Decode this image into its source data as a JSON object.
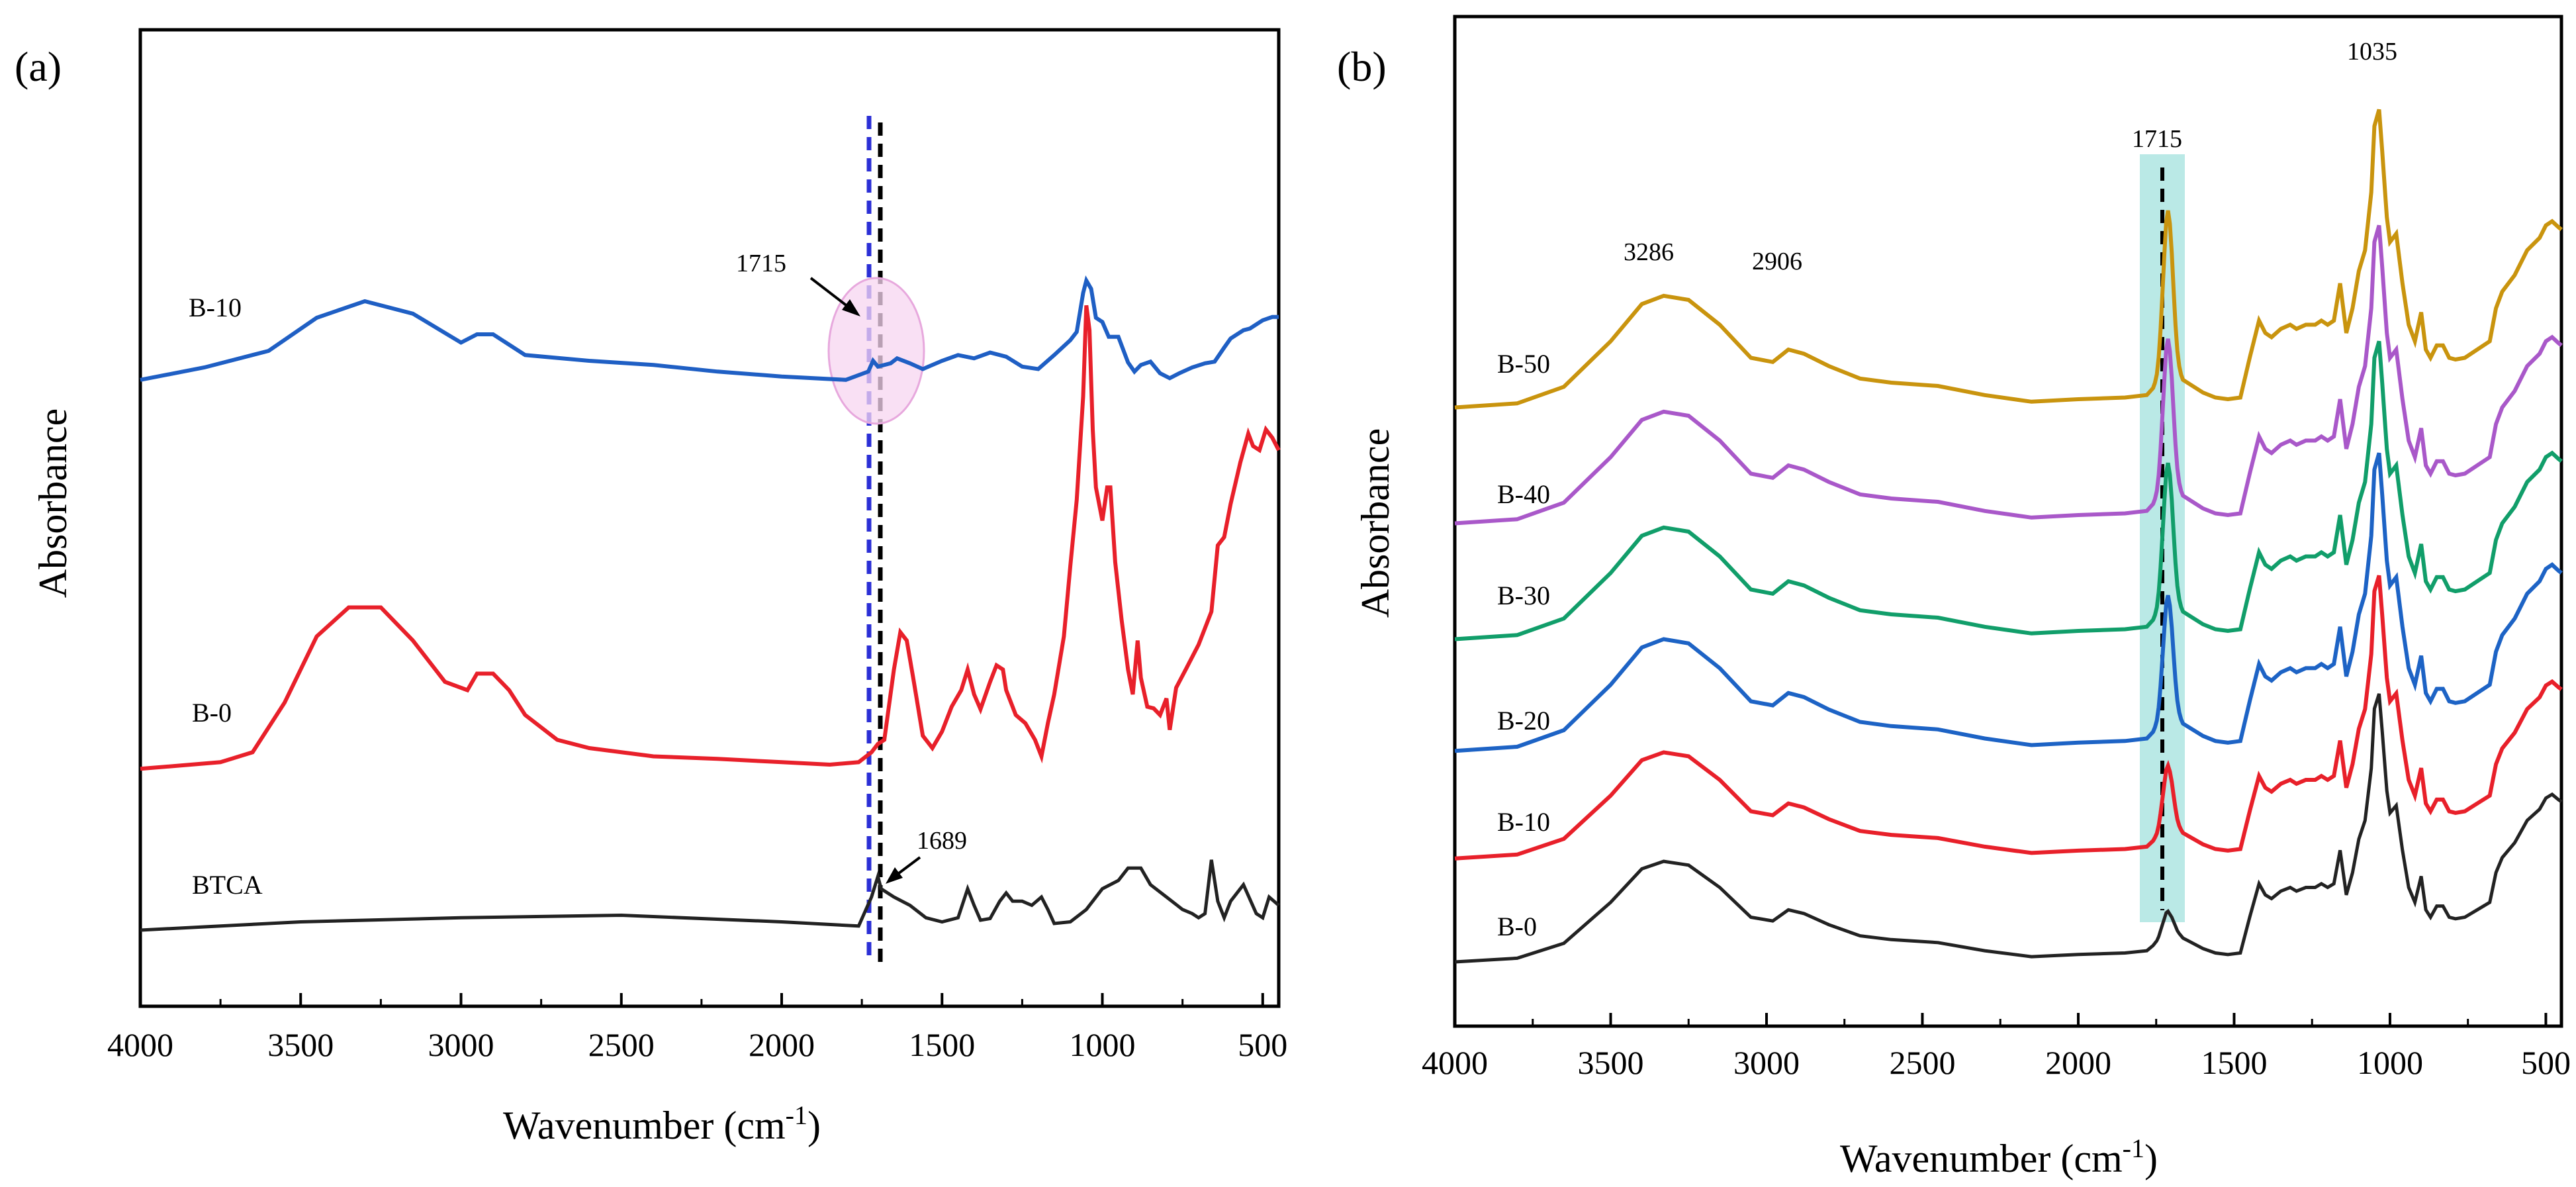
{
  "chart_data": [
    {
      "type": "line",
      "panel_label": "(a)",
      "xlabel": "Wavenumber (cm",
      "xlabel_sup": "-1",
      "xlabel_close": ")",
      "ylabel": "Absorbance",
      "xlim": [
        4000,
        450
      ],
      "ylim": [
        0,
        100
      ],
      "x_reversed": true,
      "xticks": [
        4000,
        3500,
        3000,
        2500,
        2000,
        1500,
        1000,
        500
      ],
      "xtick_labels": [
        "4000",
        "3500",
        "3000",
        "2500",
        "2000",
        "1500",
        "1000",
        "500"
      ],
      "series": [
        {
          "name": "B-10",
          "color": "#1f5fc4",
          "offset": 66.5,
          "points": [
            [
              4000,
              0
            ],
            [
              3800,
              1.5
            ],
            [
              3600,
              3.5
            ],
            [
              3450,
              7.5
            ],
            [
              3300,
              9.5
            ],
            [
              3150,
              8
            ],
            [
              3000,
              4.5
            ],
            [
              2950,
              5.5
            ],
            [
              2900,
              5.5
            ],
            [
              2800,
              3
            ],
            [
              2600,
              2.3
            ],
            [
              2400,
              1.8
            ],
            [
              2200,
              1
            ],
            [
              2000,
              0.4
            ],
            [
              1800,
              0
            ],
            [
              1730,
              1
            ],
            [
              1715,
              2.3
            ],
            [
              1700,
              1.6
            ],
            [
              1660,
              2
            ],
            [
              1640,
              2.6
            ],
            [
              1600,
              2
            ],
            [
              1560,
              1.3
            ],
            [
              1500,
              2.3
            ],
            [
              1450,
              3
            ],
            [
              1400,
              2.6
            ],
            [
              1350,
              3.3
            ],
            [
              1300,
              2.8
            ],
            [
              1250,
              1.6
            ],
            [
              1200,
              1.3
            ],
            [
              1150,
              3
            ],
            [
              1100,
              4.8
            ],
            [
              1080,
              5.8
            ],
            [
              1060,
              10.5
            ],
            [
              1050,
              12
            ],
            [
              1035,
              11
            ],
            [
              1020,
              7.5
            ],
            [
              1000,
              7
            ],
            [
              980,
              5.2
            ],
            [
              950,
              5.2
            ],
            [
              920,
              2.1
            ],
            [
              900,
              1
            ],
            [
              880,
              1.8
            ],
            [
              850,
              2.2
            ],
            [
              820,
              0.8
            ],
            [
              790,
              0.2
            ],
            [
              760,
              0.8
            ],
            [
              720,
              1.5
            ],
            [
              680,
              2
            ],
            [
              650,
              2.2
            ],
            [
              620,
              3.9
            ],
            [
              600,
              5
            ],
            [
              560,
              6
            ],
            [
              540,
              6.2
            ],
            [
              500,
              7.2
            ],
            [
              470,
              7.6
            ],
            [
              450,
              7.6
            ]
          ]
        },
        {
          "name": "B-0",
          "color": "#e8202a",
          "offset": 19.5,
          "points": [
            [
              4000,
              0
            ],
            [
              3750,
              0.8
            ],
            [
              3650,
              2
            ],
            [
              3550,
              8
            ],
            [
              3450,
              16
            ],
            [
              3350,
              19.5
            ],
            [
              3250,
              19.5
            ],
            [
              3150,
              15.5
            ],
            [
              3050,
              10.5
            ],
            [
              2980,
              9.5
            ],
            [
              2950,
              11.5
            ],
            [
              2900,
              11.5
            ],
            [
              2850,
              9.5
            ],
            [
              2800,
              6.5
            ],
            [
              2700,
              3.5
            ],
            [
              2600,
              2.5
            ],
            [
              2400,
              1.5
            ],
            [
              2200,
              1.2
            ],
            [
              2000,
              0.8
            ],
            [
              1850,
              0.5
            ],
            [
              1760,
              0.8
            ],
            [
              1720,
              2
            ],
            [
              1700,
              3
            ],
            [
              1680,
              3.5
            ],
            [
              1650,
              12
            ],
            [
              1630,
              16.5
            ],
            [
              1610,
              15.5
            ],
            [
              1590,
              11
            ],
            [
              1560,
              4
            ],
            [
              1530,
              2.5
            ],
            [
              1500,
              4.5
            ],
            [
              1470,
              7.5
            ],
            [
              1440,
              9.5
            ],
            [
              1420,
              12
            ],
            [
              1400,
              9
            ],
            [
              1380,
              7.2
            ],
            [
              1350,
              10.5
            ],
            [
              1330,
              12.5
            ],
            [
              1310,
              12
            ],
            [
              1300,
              9.5
            ],
            [
              1270,
              6.5
            ],
            [
              1240,
              5.5
            ],
            [
              1210,
              3.5
            ],
            [
              1190,
              1.5
            ],
            [
              1170,
              5.5
            ],
            [
              1150,
              9
            ],
            [
              1120,
              16
            ],
            [
              1100,
              24.5
            ],
            [
              1080,
              32.5
            ],
            [
              1060,
              45
            ],
            [
              1050,
              56
            ],
            [
              1040,
              53
            ],
            [
              1030,
              41
            ],
            [
              1020,
              34
            ],
            [
              1000,
              30
            ],
            [
              985,
              34
            ],
            [
              975,
              34
            ],
            [
              960,
              25
            ],
            [
              940,
              18
            ],
            [
              920,
              12
            ],
            [
              905,
              9
            ],
            [
              890,
              15.5
            ],
            [
              880,
              11
            ],
            [
              860,
              7.5
            ],
            [
              840,
              7.3
            ],
            [
              820,
              6.5
            ],
            [
              800,
              8.5
            ],
            [
              790,
              4.7
            ],
            [
              770,
              9.8
            ],
            [
              740,
              12
            ],
            [
              700,
              15
            ],
            [
              660,
              19
            ],
            [
              640,
              27
            ],
            [
              620,
              28
            ],
            [
              600,
              32
            ],
            [
              570,
              37
            ],
            [
              545,
              40.5
            ],
            [
              530,
              39
            ],
            [
              510,
              38.5
            ],
            [
              490,
              41
            ],
            [
              470,
              40
            ],
            [
              450,
              38.5
            ]
          ]
        },
        {
          "name": "BTCA",
          "color": "#222222",
          "offset": 0,
          "points": [
            [
              4000,
              0
            ],
            [
              3500,
              1
            ],
            [
              3000,
              1.5
            ],
            [
              2500,
              1.8
            ],
            [
              2000,
              1
            ],
            [
              1760,
              0.5
            ],
            [
              1720,
              4
            ],
            [
              1700,
              6.5
            ],
            [
              1690,
              5
            ],
            [
              1650,
              4
            ],
            [
              1600,
              3
            ],
            [
              1550,
              1.5
            ],
            [
              1500,
              1
            ],
            [
              1450,
              1.5
            ],
            [
              1420,
              5
            ],
            [
              1400,
              3
            ],
            [
              1380,
              1.2
            ],
            [
              1350,
              1.4
            ],
            [
              1320,
              3.5
            ],
            [
              1300,
              4.5
            ],
            [
              1280,
              3.5
            ],
            [
              1250,
              3.5
            ],
            [
              1220,
              3
            ],
            [
              1190,
              4
            ],
            [
              1170,
              2.5
            ],
            [
              1150,
              0.8
            ],
            [
              1100,
              1
            ],
            [
              1050,
              2.5
            ],
            [
              1000,
              5
            ],
            [
              950,
              6
            ],
            [
              920,
              7.5
            ],
            [
              880,
              7.5
            ],
            [
              850,
              5.5
            ],
            [
              800,
              4
            ],
            [
              750,
              2.5
            ],
            [
              720,
              2
            ],
            [
              700,
              1.5
            ],
            [
              680,
              2
            ],
            [
              660,
              8.5
            ],
            [
              640,
              3.5
            ],
            [
              620,
              1.5
            ],
            [
              600,
              3.5
            ],
            [
              560,
              5.5
            ],
            [
              520,
              2
            ],
            [
              500,
              1.5
            ],
            [
              480,
              4
            ],
            [
              450,
              3
            ]
          ]
        }
      ],
      "annotations": {
        "a1715": "1715",
        "a1689": "1689"
      }
    },
    {
      "type": "line",
      "panel_label": "(b)",
      "xlabel": "Wavenumber (cm",
      "xlabel_sup": "-1",
      "xlabel_close": ")",
      "ylabel": "Absorbance",
      "xlim": [
        4000,
        450
      ],
      "ylim": [
        0,
        100
      ],
      "x_reversed": true,
      "xticks": [
        4000,
        3500,
        3000,
        2500,
        2000,
        1500,
        1000,
        500
      ],
      "xtick_labels": [
        "4000",
        "3500",
        "3000",
        "2500",
        "2000",
        "1500",
        "1000",
        "500"
      ],
      "series": [
        {
          "name": "B-50",
          "color": "#c9940e",
          "offset": 67,
          "scale": 1.0
        },
        {
          "name": "B-40",
          "color": "#a958c9",
          "offset": 53,
          "scale": 1.0
        },
        {
          "name": "B-30",
          "color": "#119e6a",
          "offset": 39,
          "scale": 1.0
        },
        {
          "name": "B-20",
          "color": "#1d63c5",
          "offset": 25.5,
          "scale": 1.0
        },
        {
          "name": "B-10",
          "color": "#e8202a",
          "offset": 12.5,
          "scale": 0.95
        },
        {
          "name": "B-0",
          "color": "#222222",
          "offset": 0,
          "scale": 0.9
        }
      ],
      "base_shape": [
        [
          4000,
          0
        ],
        [
          3800,
          0.5
        ],
        [
          3650,
          2.5
        ],
        [
          3500,
          8
        ],
        [
          3400,
          12.5
        ],
        [
          3330,
          13.5
        ],
        [
          3250,
          13
        ],
        [
          3150,
          10
        ],
        [
          3050,
          6
        ],
        [
          2980,
          5.5
        ],
        [
          2930,
          7
        ],
        [
          2880,
          6.5
        ],
        [
          2800,
          5
        ],
        [
          2700,
          3.5
        ],
        [
          2600,
          3
        ],
        [
          2450,
          2.6
        ],
        [
          2300,
          1.5
        ],
        [
          2150,
          0.7
        ],
        [
          2000,
          1
        ],
        [
          1850,
          1.2
        ],
        [
          1780,
          1.5
        ],
        [
          1760,
          2.2
        ],
        [
          1745,
          3
        ],
        [
          1730,
          5
        ],
        [
          1715,
          7
        ],
        [
          1700,
          6
        ],
        [
          1680,
          4
        ],
        [
          1660,
          3
        ],
        [
          1600,
          1.8
        ],
        [
          1560,
          1.2
        ],
        [
          1520,
          1
        ],
        [
          1480,
          1.2
        ],
        [
          1450,
          6
        ],
        [
          1420,
          10.5
        ],
        [
          1400,
          9
        ],
        [
          1380,
          8.5
        ],
        [
          1350,
          9.5
        ],
        [
          1320,
          10
        ],
        [
          1300,
          9.5
        ],
        [
          1270,
          10
        ],
        [
          1240,
          10
        ],
        [
          1220,
          10.5
        ],
        [
          1200,
          10
        ],
        [
          1180,
          10.5
        ],
        [
          1160,
          15
        ],
        [
          1140,
          9
        ],
        [
          1120,
          12
        ],
        [
          1100,
          16.5
        ],
        [
          1080,
          19
        ],
        [
          1060,
          26
        ],
        [
          1050,
          34
        ],
        [
          1035,
          36
        ],
        [
          1025,
          31
        ],
        [
          1010,
          23
        ],
        [
          1000,
          20
        ],
        [
          990,
          20.5
        ],
        [
          980,
          21
        ],
        [
          960,
          15
        ],
        [
          940,
          10
        ],
        [
          920,
          8
        ],
        [
          900,
          11.5
        ],
        [
          885,
          7
        ],
        [
          870,
          6
        ],
        [
          850,
          7.5
        ],
        [
          830,
          7.5
        ],
        [
          810,
          6
        ],
        [
          790,
          5.8
        ],
        [
          760,
          6
        ],
        [
          720,
          7
        ],
        [
          680,
          8
        ],
        [
          660,
          12
        ],
        [
          640,
          14
        ],
        [
          600,
          16
        ],
        [
          560,
          19
        ],
        [
          520,
          20.5
        ],
        [
          500,
          22
        ],
        [
          480,
          22.5
        ],
        [
          460,
          21.8
        ],
        [
          450,
          21.5
        ]
      ],
      "peak_1715_heights": {
        "B-50": 17,
        "B-40": 15.5,
        "B-30": 14.5,
        "B-20": 12,
        "B-10": 5,
        "B-0": 0
      },
      "annotations": {
        "a3286": "3286",
        "a2906": "2906",
        "a1715": "1715",
        "a1035": "1035"
      }
    }
  ]
}
